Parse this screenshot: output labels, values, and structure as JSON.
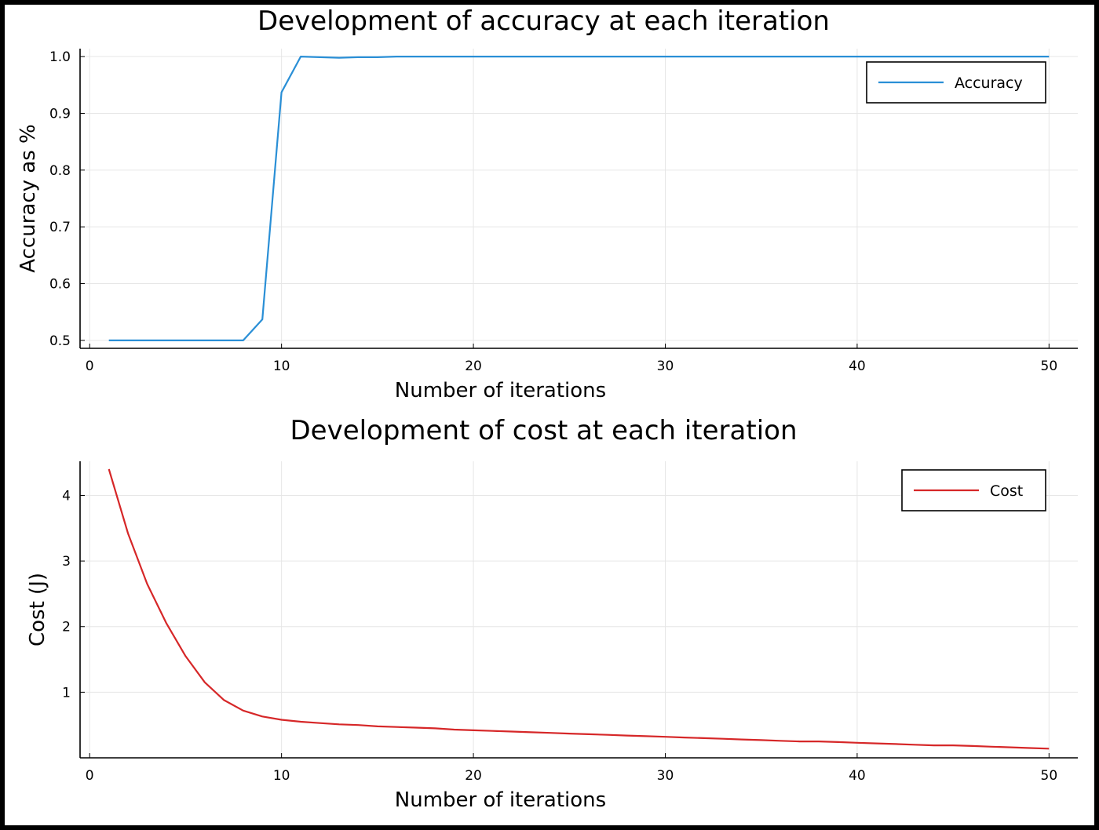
{
  "chart_data": [
    {
      "type": "line",
      "title": "Development of accuracy at each iteration",
      "xlabel": "Number of iterations",
      "ylabel": "Accuracy as %",
      "xlim": [
        -0.5,
        51.5
      ],
      "ylim": [
        0.486,
        1.014
      ],
      "xticks": [
        0,
        10,
        20,
        30,
        40,
        50
      ],
      "yticks": [
        0.5,
        0.6,
        0.7,
        0.8,
        0.9,
        1.0
      ],
      "ytick_labels": [
        "0.5",
        "0.6",
        "0.7",
        "0.8",
        "0.9",
        "1.0"
      ],
      "grid": true,
      "legend_position": "top-right",
      "series": [
        {
          "name": "Accuracy",
          "color": "#2a8fd6",
          "x": [
            1,
            2,
            3,
            4,
            5,
            6,
            7,
            8,
            9,
            10,
            11,
            12,
            13,
            14,
            15,
            16,
            17,
            18,
            19,
            20,
            21,
            22,
            23,
            24,
            25,
            26,
            27,
            28,
            29,
            30,
            31,
            32,
            33,
            34,
            35,
            36,
            37,
            38,
            39,
            40,
            41,
            42,
            43,
            44,
            45,
            46,
            47,
            48,
            49,
            50
          ],
          "y": [
            0.5,
            0.5,
            0.5,
            0.5,
            0.5,
            0.5,
            0.5,
            0.5,
            0.537,
            0.937,
            1.0,
            0.999,
            0.998,
            0.999,
            0.999,
            1.0,
            1.0,
            1.0,
            1.0,
            1.0,
            1.0,
            1.0,
            1.0,
            1.0,
            1.0,
            1.0,
            1.0,
            1.0,
            1.0,
            1.0,
            1.0,
            1.0,
            1.0,
            1.0,
            1.0,
            1.0,
            1.0,
            1.0,
            1.0,
            1.0,
            1.0,
            1.0,
            1.0,
            1.0,
            1.0,
            1.0,
            1.0,
            1.0,
            1.0,
            1.0
          ]
        }
      ]
    },
    {
      "type": "line",
      "title": "Development of cost at each iteration",
      "xlabel": "Number of iterations",
      "ylabel": "Cost (J)",
      "xlim": [
        -0.5,
        51.5
      ],
      "ylim": [
        0.0,
        4.52
      ],
      "xticks": [
        0,
        10,
        20,
        30,
        40,
        50
      ],
      "yticks": [
        1,
        2,
        3,
        4
      ],
      "ytick_labels": [
        "1",
        "2",
        "3",
        "4"
      ],
      "grid": true,
      "legend_position": "top-right",
      "series": [
        {
          "name": "Cost",
          "color": "#d62728",
          "x": [
            1,
            2,
            3,
            4,
            5,
            6,
            7,
            8,
            9,
            10,
            11,
            12,
            13,
            14,
            15,
            16,
            17,
            18,
            19,
            20,
            21,
            22,
            23,
            24,
            25,
            26,
            27,
            28,
            29,
            30,
            31,
            32,
            33,
            34,
            35,
            36,
            37,
            38,
            39,
            40,
            41,
            42,
            43,
            44,
            45,
            46,
            47,
            48,
            49,
            50
          ],
          "y": [
            4.4,
            3.42,
            2.65,
            2.05,
            1.55,
            1.15,
            0.88,
            0.72,
            0.63,
            0.58,
            0.55,
            0.53,
            0.51,
            0.5,
            0.48,
            0.47,
            0.46,
            0.45,
            0.43,
            0.42,
            0.41,
            0.4,
            0.39,
            0.38,
            0.37,
            0.36,
            0.35,
            0.34,
            0.33,
            0.32,
            0.31,
            0.3,
            0.29,
            0.28,
            0.27,
            0.26,
            0.25,
            0.25,
            0.24,
            0.23,
            0.22,
            0.21,
            0.2,
            0.19,
            0.19,
            0.18,
            0.17,
            0.16,
            0.15,
            0.14
          ]
        }
      ]
    }
  ]
}
